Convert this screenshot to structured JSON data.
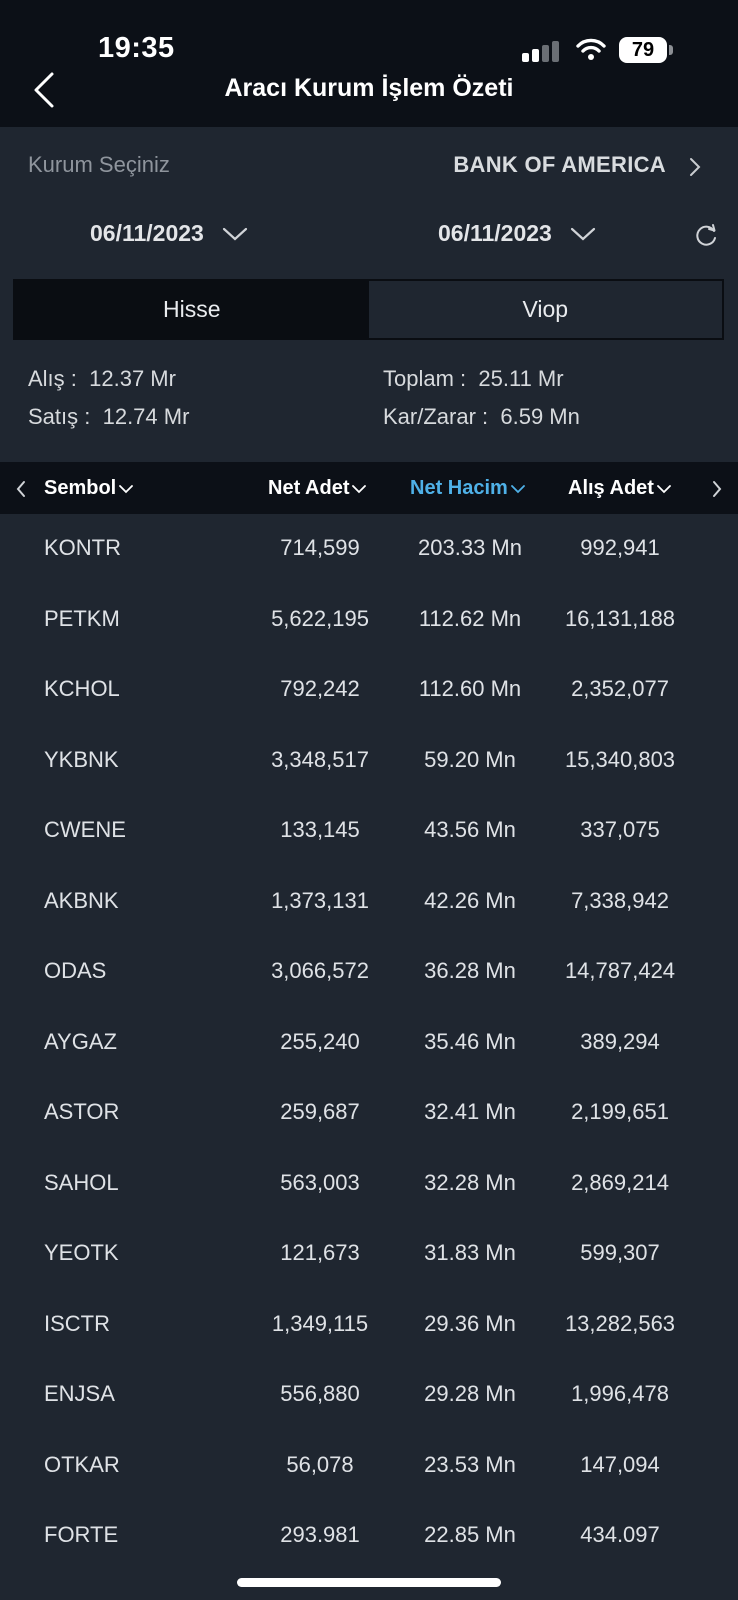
{
  "status_bar": {
    "time": "19:35",
    "battery": "79"
  },
  "header": {
    "title": "Aracı Kurum İşlem Özeti"
  },
  "institution": {
    "label": "Kurum Seçiniz",
    "value": "BANK OF AMERICA"
  },
  "dates": {
    "start": "06/11/2023",
    "end": "06/11/2023"
  },
  "tabs": [
    {
      "label": "Hisse",
      "active": true
    },
    {
      "label": "Viop",
      "active": false
    }
  ],
  "summary": {
    "alis_label": "Alış :",
    "alis_value": "12.37 Mr",
    "satis_label": "Satış :",
    "satis_value": "12.74 Mr",
    "toplam_label": "Toplam :",
    "toplam_value": "25.11 Mr",
    "karzarar_label": "Kar/Zarar :",
    "karzarar_value": "6.59 Mn"
  },
  "table": {
    "columns": [
      "Sembol",
      "Net Adet",
      "Net Hacim",
      "Alış Adet"
    ],
    "sorted_column": "Net Hacim",
    "rows": [
      [
        "KONTR",
        "714,599",
        "203.33 Mn",
        "992,941"
      ],
      [
        "PETKM",
        "5,622,195",
        "112.62 Mn",
        "16,131,188"
      ],
      [
        "KCHOL",
        "792,242",
        "112.60 Mn",
        "2,352,077"
      ],
      [
        "YKBNK",
        "3,348,517",
        "59.20 Mn",
        "15,340,803"
      ],
      [
        "CWENE",
        "133,145",
        "43.56 Mn",
        "337,075"
      ],
      [
        "AKBNK",
        "1,373,131",
        "42.26 Mn",
        "7,338,942"
      ],
      [
        "ODAS",
        "3,066,572",
        "36.28 Mn",
        "14,787,424"
      ],
      [
        "AYGAZ",
        "255,240",
        "35.46 Mn",
        "389,294"
      ],
      [
        "ASTOR",
        "259,687",
        "32.41 Mn",
        "2,199,651"
      ],
      [
        "SAHOL",
        "563,003",
        "32.28 Mn",
        "2,869,214"
      ],
      [
        "YEOTK",
        "121,673",
        "31.83 Mn",
        "599,307"
      ],
      [
        "ISCTR",
        "1,349,115",
        "29.36 Mn",
        "13,282,563"
      ],
      [
        "ENJSA",
        "556,880",
        "29.28 Mn",
        "1,996,478"
      ],
      [
        "OTKAR",
        "56,078",
        "23.53 Mn",
        "147,094"
      ],
      [
        "FORTE",
        "293.981",
        "22.85 Mn",
        "434.097"
      ]
    ]
  }
}
